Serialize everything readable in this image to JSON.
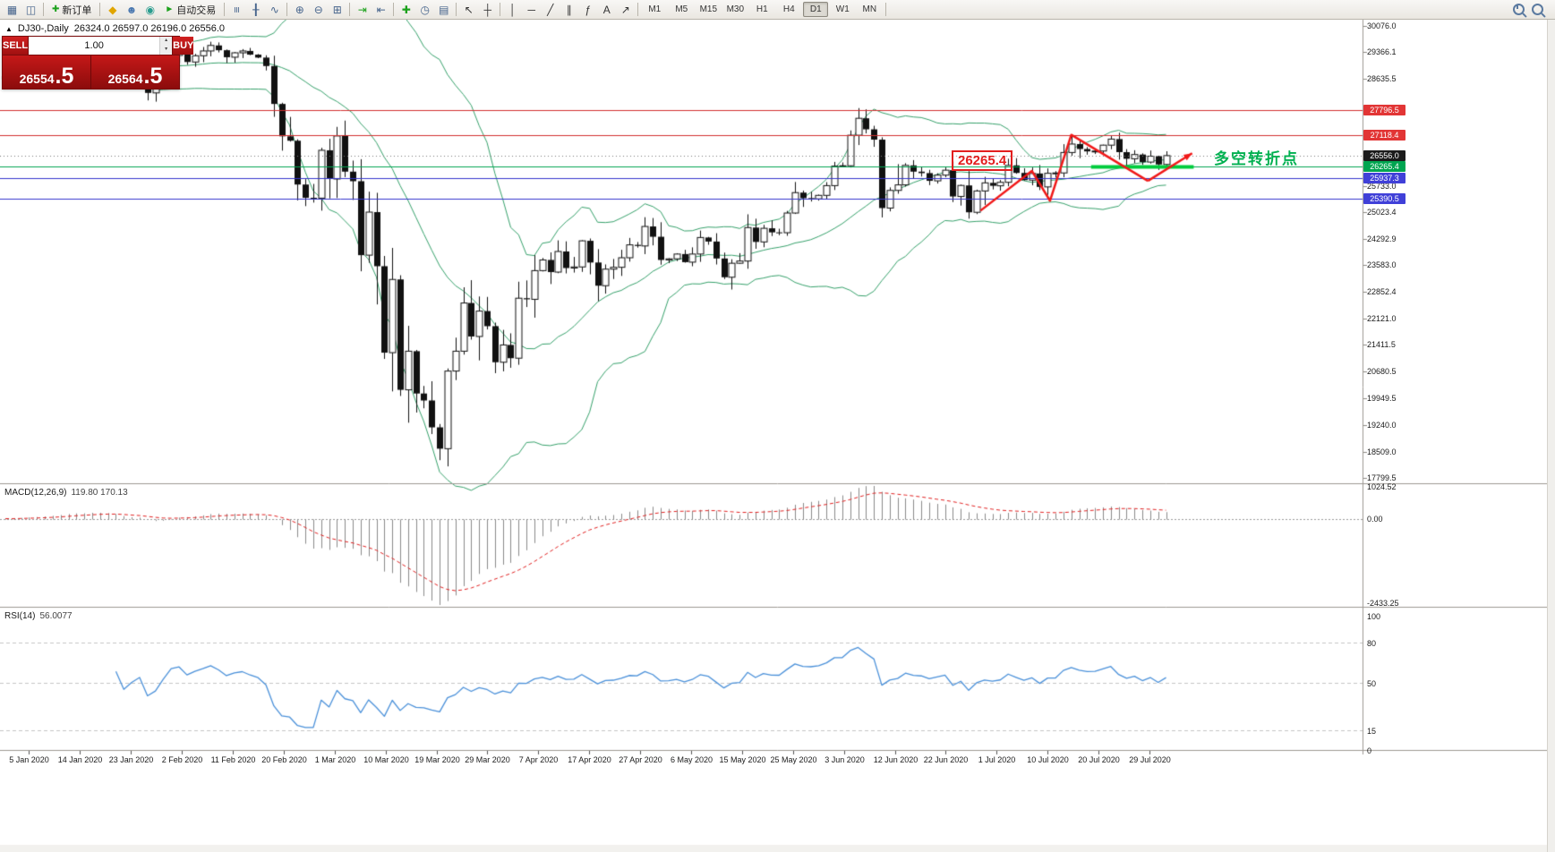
{
  "toolbar": {
    "groups": [
      {
        "items": [
          {
            "name": "new-chart-icon",
            "glyph": "▦",
            "color": "#46648c"
          },
          {
            "name": "tile-windows-icon",
            "glyph": "◫",
            "color": "#46648c"
          }
        ]
      },
      {
        "items": [
          {
            "name": "new-order-button",
            "label": "新订单",
            "glyph": "✚",
            "color": "#1ba11b"
          }
        ]
      },
      {
        "items": [
          {
            "name": "metaeditor-icon",
            "glyph": "◆",
            "color": "#e0a500"
          },
          {
            "name": "profile-icon",
            "glyph": "☻",
            "color": "#4a78b0"
          },
          {
            "name": "community-icon",
            "glyph": "◉",
            "color": "#2a9d8f"
          },
          {
            "name": "autotrading-button",
            "label": "自动交易",
            "glyph": "►",
            "color": "#1ba11b"
          }
        ]
      },
      {
        "items": [
          {
            "name": "bar-chart-icon",
            "glyph": "≡",
            "color": "#46648c",
            "rotate": true
          },
          {
            "name": "candlestick-chart-icon",
            "glyph": "╂",
            "color": "#46648c"
          },
          {
            "name": "line-chart-icon",
            "glyph": "∿",
            "color": "#46648c"
          }
        ]
      },
      {
        "items": [
          {
            "name": "zoom-in-icon",
            "glyph": "⊕",
            "color": "#46648c"
          },
          {
            "name": "zoom-out-icon",
            "glyph": "⊖",
            "color": "#46648c"
          },
          {
            "name": "tile-grid-icon",
            "glyph": "⊞",
            "color": "#46648c"
          }
        ]
      },
      {
        "items": [
          {
            "name": "auto-scroll-icon",
            "glyph": "⇥",
            "color": "#1ba11b"
          },
          {
            "name": "chart-shift-icon",
            "glyph": "⇤",
            "color": "#46648c"
          }
        ]
      },
      {
        "items": [
          {
            "name": "indicators-icon",
            "glyph": "✚",
            "color": "#1ba11b"
          },
          {
            "name": "periods-icon",
            "glyph": "◷",
            "color": "#46648c"
          },
          {
            "name": "templates-icon",
            "glyph": "▤",
            "color": "#46648c"
          }
        ]
      },
      {
        "items": [
          {
            "name": "cursor-icon",
            "glyph": "↖",
            "color": "#333333"
          },
          {
            "name": "crosshair-icon",
            "glyph": "┼",
            "color": "#333333"
          }
        ]
      },
      {
        "items": [
          {
            "name": "vertical-line-icon",
            "glyph": "│",
            "color": "#333333"
          },
          {
            "name": "horizontal-line-icon",
            "glyph": "─",
            "color": "#333333"
          },
          {
            "name": "trendline-icon",
            "glyph": "╱",
            "color": "#333333"
          },
          {
            "name": "channel-icon",
            "glyph": "∥",
            "color": "#333333"
          },
          {
            "name": "fibonacci-icon",
            "glyph": "ƒ",
            "color": "#333333"
          },
          {
            "name": "text-icon",
            "glyph": "A",
            "color": "#333333"
          },
          {
            "name": "arrows-icon",
            "glyph": "↗",
            "color": "#333333"
          }
        ]
      }
    ],
    "timeframes": [
      "M1",
      "M5",
      "M15",
      "M30",
      "H1",
      "H4",
      "D1",
      "W1",
      "MN"
    ],
    "active_timeframe": "D1"
  },
  "header": {
    "collapse_glyph": "▲",
    "symbol": "DJ30-,Daily",
    "ohlc": "26324.0 26597.0 26196.0 26556.0"
  },
  "quote": {
    "sell_label": "SELL",
    "buy_label": "BUY",
    "volume": "1.00",
    "spin_up": "▴",
    "spin_down": "▾",
    "sell_main": "26554",
    "sell_big": ".5",
    "buy_main": "26564",
    "buy_big": ".5"
  },
  "macd": {
    "label": "MACD(12,26,9)",
    "values": "119.80 170.13",
    "axis": [
      "1024.52",
      "0.00",
      "-2433.25"
    ]
  },
  "rsi": {
    "label": "RSI(14)",
    "value": "56.0077",
    "axis": [
      "100",
      "80",
      "50",
      "15",
      "0"
    ],
    "levels": [
      80,
      50,
      15
    ]
  },
  "annotations": {
    "level_label": {
      "text": "26265.4"
    },
    "cn_note": {
      "text": "多空转折点",
      "color": "#00b050"
    },
    "zigzag": {
      "color": "#f01818",
      "points": [
        [
          123.5,
          25060
        ],
        [
          130,
          26140
        ],
        [
          132.3,
          25330
        ],
        [
          135,
          27120
        ],
        [
          144.7,
          25870
        ]
      ]
    },
    "arrow": {
      "color": "#f01818",
      "from": [
        144.7,
        25870
      ],
      "to": [
        150.3,
        26620
      ]
    },
    "support": {
      "color": "#00cc3c",
      "from_index": 137.5,
      "to_index": 150.5,
      "price": 26265.4
    }
  },
  "chart_data": {
    "type": "candlestick",
    "symbol": "DJ30-",
    "period": "Daily",
    "ohlc": {
      "open": 26324.0,
      "high": 26597.0,
      "low": 26196.0,
      "close": 26556.0
    },
    "x_labels": [
      "5 Jan 2020",
      "14 Jan 2020",
      "23 Jan 2020",
      "2 Feb 2020",
      "11 Feb 2020",
      "20 Feb 2020",
      "1 Mar 2020",
      "10 Mar 2020",
      "19 Mar 2020",
      "29 Mar 2020",
      "7 Apr 2020",
      "17 Apr 2020",
      "27 Apr 2020",
      "6 May 2020",
      "15 May 2020",
      "25 May 2020",
      "3 Jun 2020",
      "12 Jun 2020",
      "22 Jun 2020",
      "1 Jul 2020",
      "10 Jul 2020",
      "20 Jul 2020",
      "29 Jul 2020"
    ],
    "y_ticks": [
      "30076.0",
      "29366.1",
      "28635.5",
      "25733.0",
      "25023.4",
      "24292.9",
      "23583.0",
      "22852.4",
      "22121.0",
      "21411.5",
      "20680.5",
      "19949.5",
      "19240.0",
      "18509.0",
      "17799.5"
    ],
    "closes": [
      28700,
      28760,
      28900,
      28960,
      28890,
      29010,
      29090,
      29210,
      29340,
      29300,
      29180,
      29370,
      29250,
      29160,
      28960,
      28540,
      28720,
      28860,
      28260,
      28400,
      28810,
      29280,
      29370,
      29100,
      29270,
      29400,
      29550,
      29420,
      29230,
      29350,
      29400,
      29300,
      29220,
      28990,
      27960,
      27080,
      26960,
      25770,
      25410,
      25400,
      26700,
      25920,
      27090,
      26120,
      25860,
      23850,
      25020,
      23550,
      21200,
      23190,
      20190,
      21240,
      20090,
      19900,
      19170,
      18590,
      20700,
      21240,
      22550,
      21640,
      22330,
      21920,
      20940,
      21410,
      21050,
      22680,
      22650,
      23430,
      23720,
      23390,
      23950,
      23500,
      23530,
      24240,
      23650,
      23020,
      23470,
      23520,
      23780,
      24130,
      24100,
      24630,
      24350,
      23720,
      23750,
      23880,
      23660,
      23880,
      24330,
      24220,
      23760,
      23250,
      23630,
      23690,
      24600,
      24210,
      24580,
      24470,
      24460,
      24995,
      25550,
      25400,
      25380,
      25475,
      25740,
      26270,
      26280,
      27110,
      27570,
      27270,
      26990,
      25130,
      25610,
      25760,
      26290,
      26120,
      26080,
      25870,
      26025,
      26160,
      25445,
      25745,
      25015,
      25595,
      25815,
      25735,
      25830,
      26290,
      26085,
      25890,
      26070,
      25705,
      26075,
      26085,
      26640,
      26870,
      26735,
      26670,
      26680,
      26840,
      27005,
      26650,
      26470,
      26585,
      26380,
      26540,
      26315,
      26556
    ],
    "hlines": [
      {
        "price": 27796.5,
        "label": "27796.5",
        "color": "#d22f2f",
        "badge": "#e23535"
      },
      {
        "price": 27118.4,
        "label": "27118.4",
        "color": "#d22f2f",
        "badge": "#e23535"
      },
      {
        "price": 26556.0,
        "label": "26556.0",
        "color": "#777777",
        "badge": "#1c1c1c",
        "style": "dash"
      },
      {
        "price": 26265.4,
        "label": "26265.4",
        "color": "#00a550",
        "badge": "#00a550"
      },
      {
        "price": 25937.3,
        "label": "25937.3",
        "color": "#3434cc",
        "badge": "#4040d8"
      },
      {
        "price": 25390.5,
        "label": "25390.5",
        "color": "#3434cc",
        "badge": "#4040d8"
      }
    ],
    "bollinger": {
      "period": 20,
      "deviation": 2,
      "color": "#35a06a"
    }
  }
}
